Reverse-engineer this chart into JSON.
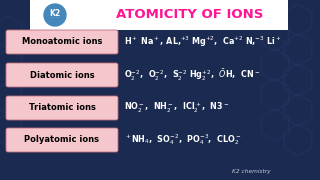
{
  "title": "ATOMICITY OF IONS",
  "title_color": "#FF1493",
  "bg_color": "#1a2a50",
  "header_bg": "#ffffff",
  "label_bg": "#f5c6cb",
  "label_border": "#c07080",
  "hex_color": "#2a3a70",
  "text_color": "#ffffff",
  "watermark": "K2 chemistry",
  "k2_circle_bg": "#4488bb",
  "row_labels": [
    "Monoatomic ions",
    "Diatomic ions",
    "Triatomic ions",
    "Polyatomic ions"
  ],
  "row_contents": [
    "H$^+$ Na$^+$, AL,$^{+3}$ Mg$^{+2}$,  Ca$^{+2}$ N,$^{-3}$ Li$^+$",
    "O$_2^{-2}$,  O$_2^{-2}$,  S$_2^{-2}$ Hg$_2^{+2}$,  $\\bar{O}$H,  CN$^-$",
    "NO$_2^-$,  NH$_2^-$,  ICl$_2^+$,  N3$^-$",
    "$^+$NH$_4$,  SO$_4^{-2}$,  PO$_4^{-3}$,  CLO$_2^-$"
  ],
  "figw": 3.2,
  "figh": 1.8,
  "dpi": 100
}
